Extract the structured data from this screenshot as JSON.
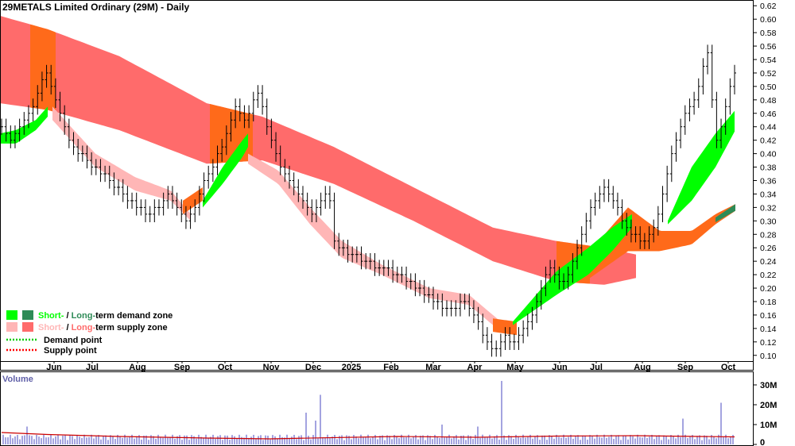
{
  "title": "29METALS Limited Ordinary (29M) - Daily",
  "volume_label": "Volume",
  "colors": {
    "short_demand": "#00ff00",
    "long_demand": "#2e8b57",
    "short_supply": "#ffb6b6",
    "long_supply": "#ff6b6b",
    "orange_zone": "#ff6a1a",
    "demand_point": "#00cc00",
    "supply_point": "#ff0000",
    "price": "#000000",
    "volume_bar": "#6666cc",
    "volume_avg": "#cc0000"
  },
  "legend": [
    {
      "key": "short-term-demand",
      "short": "Short-",
      "sep": " / ",
      "long": "Long-",
      "rest": "term demand zone",
      "short_color": "#00ff00",
      "long_color": "#2e8b57"
    },
    {
      "key": "short-term-supply",
      "short": "Short-",
      "sep": " / ",
      "long": "Long-",
      "rest": "term supply zone",
      "short_color": "#ffb6b6",
      "long_color": "#ff6b6b"
    },
    {
      "key": "demand-point",
      "label": "Demand point",
      "color": "#00cc00"
    },
    {
      "key": "supply-point",
      "label": "Supply point",
      "color": "#ff0000"
    }
  ],
  "chart_data": [
    {
      "type": "line",
      "title": "29METALS Limited Ordinary (29M) - Daily",
      "xlabel": "",
      "ylabel": "",
      "x_tick_labels": [
        "Jun",
        "Jul",
        "Aug",
        "Sep",
        "Oct",
        "Nov",
        "Dec",
        "2025",
        "Feb",
        "Mar",
        "Apr",
        "May",
        "Jun",
        "Jul",
        "Aug",
        "Sep",
        "Oct"
      ],
      "y_tick_labels": [
        "0.10",
        "0.12",
        "0.14",
        "0.16",
        "0.18",
        "0.20",
        "0.22",
        "0.24",
        "0.26",
        "0.28",
        "0.30",
        "0.32",
        "0.34",
        "0.36",
        "0.38",
        "0.40",
        "0.42",
        "0.44",
        "0.46",
        "0.48",
        "0.50",
        "0.52",
        "0.54",
        "0.56",
        "0.58",
        "0.60",
        "0.62"
      ],
      "ylim": [
        0.095,
        0.625
      ],
      "grid": false,
      "legend_position": "bottom-left",
      "series": [
        {
          "name": "Price",
          "x": [
            "Jun",
            "Jul",
            "Aug",
            "Sep",
            "Oct",
            "Nov",
            "Dec",
            "2025",
            "Feb",
            "Mar",
            "Apr",
            "May",
            "Jun",
            "Jul",
            "Aug",
            "Sep",
            "Oct"
          ],
          "values": [
            0.47,
            0.4,
            0.33,
            0.31,
            0.44,
            0.36,
            0.26,
            0.23,
            0.2,
            0.17,
            0.12,
            0.14,
            0.24,
            0.34,
            0.27,
            0.4,
            0.5
          ]
        }
      ],
      "closes": [
        0.44,
        0.43,
        0.42,
        0.43,
        0.44,
        0.45,
        0.46,
        0.47,
        0.49,
        0.51,
        0.52,
        0.5,
        0.48,
        0.46,
        0.44,
        0.42,
        0.41,
        0.4,
        0.4,
        0.39,
        0.38,
        0.38,
        0.37,
        0.37,
        0.36,
        0.35,
        0.35,
        0.34,
        0.33,
        0.33,
        0.32,
        0.32,
        0.31,
        0.31,
        0.32,
        0.32,
        0.33,
        0.34,
        0.33,
        0.32,
        0.31,
        0.3,
        0.31,
        0.32,
        0.34,
        0.36,
        0.37,
        0.38,
        0.4,
        0.41,
        0.43,
        0.45,
        0.47,
        0.46,
        0.45,
        0.46,
        0.48,
        0.49,
        0.47,
        0.44,
        0.42,
        0.4,
        0.38,
        0.37,
        0.36,
        0.35,
        0.34,
        0.33,
        0.32,
        0.31,
        0.32,
        0.33,
        0.34,
        0.33,
        0.27,
        0.26,
        0.26,
        0.25,
        0.25,
        0.25,
        0.24,
        0.24,
        0.24,
        0.23,
        0.23,
        0.23,
        0.23,
        0.22,
        0.22,
        0.22,
        0.21,
        0.21,
        0.2,
        0.2,
        0.19,
        0.19,
        0.18,
        0.18,
        0.17,
        0.17,
        0.17,
        0.17,
        0.18,
        0.18,
        0.17,
        0.16,
        0.15,
        0.13,
        0.12,
        0.11,
        0.11,
        0.12,
        0.13,
        0.12,
        0.12,
        0.13,
        0.14,
        0.15,
        0.16,
        0.18,
        0.2,
        0.22,
        0.23,
        0.22,
        0.21,
        0.21,
        0.22,
        0.24,
        0.26,
        0.28,
        0.3,
        0.32,
        0.33,
        0.34,
        0.35,
        0.34,
        0.33,
        0.32,
        0.3,
        0.29,
        0.28,
        0.28,
        0.27,
        0.27,
        0.28,
        0.29,
        0.31,
        0.34,
        0.37,
        0.4,
        0.42,
        0.44,
        0.46,
        0.47,
        0.48,
        0.5,
        0.53,
        0.55,
        0.48,
        0.42,
        0.44,
        0.47,
        0.5,
        0.52
      ]
    },
    {
      "type": "bar",
      "title": "Volume",
      "y_tick_labels": [
        "0",
        "10M",
        "20M",
        "30M"
      ],
      "ylim": [
        0,
        32
      ],
      "units": "millions",
      "volume_peaks": [
        {
          "x": "Nov",
          "value": 25
        },
        {
          "x": "Apr",
          "value": 32
        },
        {
          "x": "Sep",
          "value": 21
        }
      ],
      "typical_value": 3.5
    }
  ]
}
